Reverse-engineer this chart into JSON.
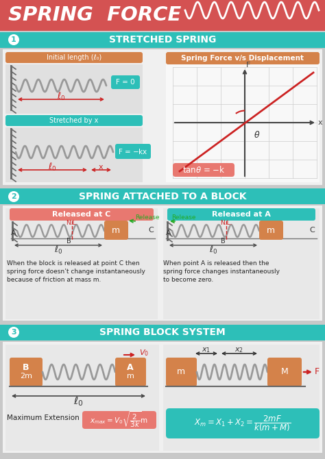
{
  "bg_color": "#c8c8c8",
  "header_bg": "#d45252",
  "teal": "#2dbfb8",
  "orange": "#d4824a",
  "salmon": "#e87870",
  "light_panel": "#f0f0f0",
  "lighter_panel": "#f8f8f8",
  "white": "#ffffff",
  "wall_color": "#888888",
  "spring_color": "#b0b0b0",
  "text_dark": "#222222",
  "text_white": "#ffffff",
  "red_arrow": "#cc2222",
  "green_release": "#22aa22",
  "title": "SPRING FORCE",
  "sec1": "STRETCHED SPRING",
  "sec2": "SPRING ATTACHED TO A BLOCK",
  "sec3": "SPRING BLOCK SYSTEM",
  "graph_title": "Spring Force v/s Displacement",
  "init_len": "Initial length (",
  "stretched": "Stretched by x",
  "desc1_left": "When the block is released at point C then\nspring force doesn’t change instantaneously\nbecause of friction at mass m.",
  "desc1_right": "When point A is released then the\nspring force changes instantaneously\nto become zero.",
  "max_ext": "Maximum Extension",
  "rel_c": "Released at C",
  "rel_a": "Released at A"
}
